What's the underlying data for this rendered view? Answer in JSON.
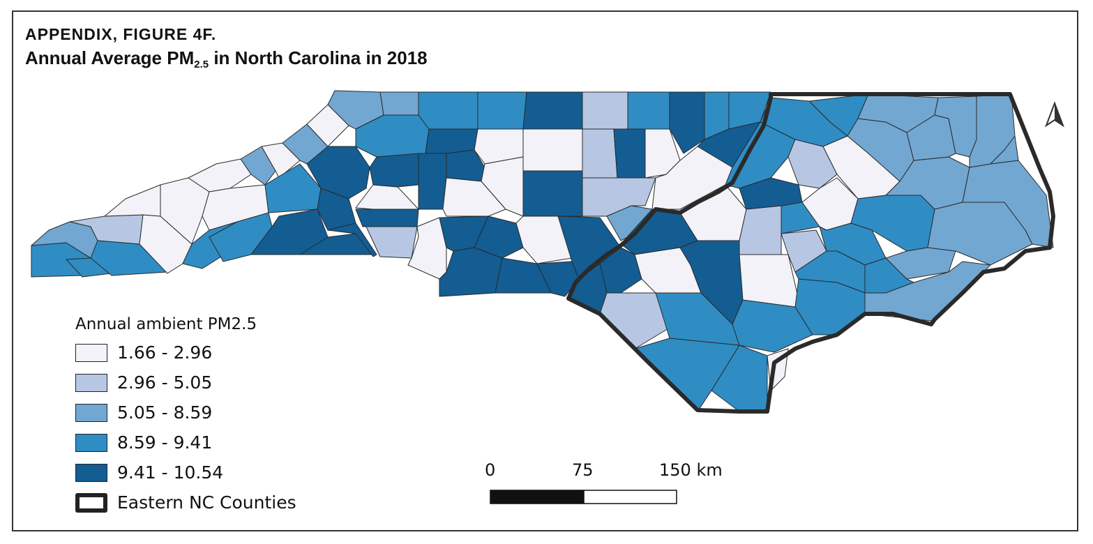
{
  "figure": {
    "label": "APPENDIX, FIGURE 4F.",
    "title_main": "Annual Average PM",
    "title_sub": "2.5",
    "title_rest": " in North Carolina in 2018"
  },
  "legend": {
    "title": "Annual ambient PM2.5",
    "classes": [
      {
        "label": "1.66 - 2.96",
        "color": "#f3f2f8"
      },
      {
        "label": "2.96 - 5.05",
        "color": "#b7c7e3"
      },
      {
        "label": "5.05 - 8.59",
        "color": "#72a7d2"
      },
      {
        "label": "8.59 - 9.41",
        "color": "#2f8dc4"
      },
      {
        "label": "9.41 - 10.54",
        "color": "#135d93"
      }
    ],
    "outline_label": "Eastern NC Counties"
  },
  "scale_bar": {
    "labels": [
      "0",
      "75",
      "150 km"
    ]
  },
  "north_arrow": "north-arrow-icon"
}
